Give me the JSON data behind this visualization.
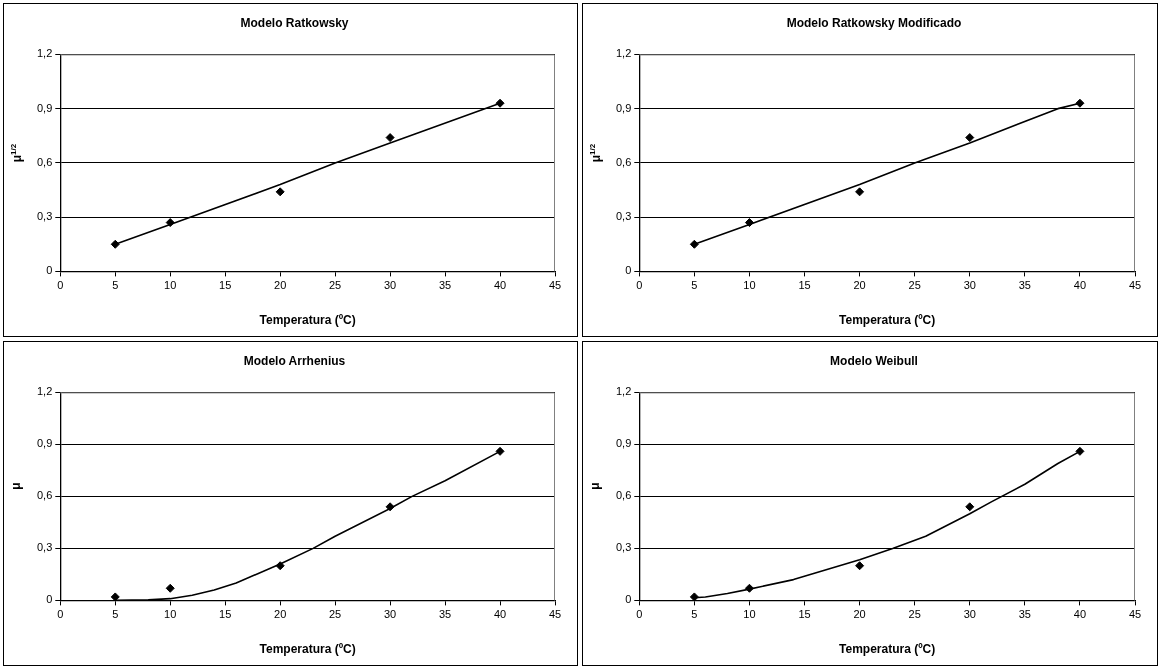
{
  "chart_data": [
    {
      "type": "scatter",
      "title": "Modelo Ratkowsky",
      "xlabel": "Temperatura (ºC)",
      "ylabel": "μ$^{1/2}$",
      "xlim": [
        0,
        45
      ],
      "xticks": [
        0,
        5,
        10,
        15,
        20,
        25,
        30,
        35,
        40,
        45
      ],
      "ylim": [
        0,
        1.2
      ],
      "yticks": [
        {
          "value": 0,
          "label": "0"
        },
        {
          "value": 0.3,
          "label": "0,3"
        },
        {
          "value": 0.6,
          "label": "0,6"
        },
        {
          "value": 0.9,
          "label": "0,9"
        },
        {
          "value": 1.2,
          "label": "1,2"
        }
      ],
      "grid": "y",
      "legend": false,
      "marker": "diamond",
      "series": [
        {
          "color": "#000000",
          "x": [
            5,
            10,
            20,
            30,
            40
          ],
          "values": [
            0.15,
            0.27,
            0.44,
            0.74,
            0.93
          ]
        },
        {
          "type": "line",
          "color": "#000000",
          "marker": "none",
          "line_style": "solid",
          "x": [
            5,
            10,
            20,
            25,
            30,
            40
          ],
          "values": [
            0.15,
            0.26,
            0.48,
            0.6,
            0.71,
            0.93
          ]
        }
      ]
    },
    {
      "type": "scatter",
      "title": "Modelo Ratkowsky Modificado",
      "xlabel": "Temperatura (ºC)",
      "ylabel": "μ$^{1/2}$",
      "xlim": [
        0,
        45
      ],
      "xticks": [
        0,
        5,
        10,
        15,
        20,
        25,
        30,
        35,
        40,
        45
      ],
      "ylim": [
        0,
        1.2
      ],
      "yticks": [
        {
          "value": 0,
          "label": "0"
        },
        {
          "value": 0.3,
          "label": "0,3"
        },
        {
          "value": 0.6,
          "label": "0,6"
        },
        {
          "value": 0.9,
          "label": "0,9"
        },
        {
          "value": 1.2,
          "label": "1,2"
        }
      ],
      "grid": "y",
      "legend": false,
      "marker": "diamond",
      "series": [
        {
          "color": "#000000",
          "x": [
            5,
            10,
            20,
            30,
            40
          ],
          "values": [
            0.15,
            0.27,
            0.44,
            0.74,
            0.93
          ]
        },
        {
          "type": "line",
          "color": "#000000",
          "marker": "none",
          "line_style": "solid",
          "x": [
            5,
            10,
            20,
            25,
            30,
            38,
            40
          ],
          "values": [
            0.15,
            0.26,
            0.48,
            0.6,
            0.71,
            0.9,
            0.93
          ]
        }
      ]
    },
    {
      "type": "scatter",
      "title": "Modelo Arrhenius",
      "xlabel": "Temperatura (ºC)",
      "ylabel": "μ",
      "xlim": [
        0,
        45
      ],
      "xticks": [
        0,
        5,
        10,
        15,
        20,
        25,
        30,
        35,
        40,
        45
      ],
      "ylim": [
        0,
        1.2
      ],
      "yticks": [
        {
          "value": 0,
          "label": "0"
        },
        {
          "value": 0.3,
          "label": "0,3"
        },
        {
          "value": 0.6,
          "label": "0,6"
        },
        {
          "value": 0.9,
          "label": "0,9"
        },
        {
          "value": 1.2,
          "label": "1,2"
        }
      ],
      "grid": "y",
      "legend": false,
      "marker": "diamond",
      "series": [
        {
          "color": "#000000",
          "x": [
            5,
            10,
            20,
            30,
            40
          ],
          "values": [
            0.02,
            0.07,
            0.2,
            0.54,
            0.86
          ]
        },
        {
          "type": "line",
          "color": "#000000",
          "marker": "none",
          "line_style": "solid",
          "x": [
            5,
            8,
            10,
            12,
            14,
            16,
            20,
            23,
            25,
            30,
            32,
            35,
            40
          ],
          "values": [
            0,
            0.003,
            0.01,
            0.03,
            0.06,
            0.1,
            0.21,
            0.3,
            0.37,
            0.53,
            0.6,
            0.69,
            0.86
          ]
        }
      ]
    },
    {
      "type": "scatter",
      "title": "Modelo Weibull",
      "xlabel": "Temperatura (ºC)",
      "ylabel": "μ",
      "xlim": [
        0,
        45
      ],
      "xticks": [
        0,
        5,
        10,
        15,
        20,
        25,
        30,
        35,
        40,
        45
      ],
      "ylim": [
        0,
        1.2
      ],
      "yticks": [
        {
          "value": 0,
          "label": "0"
        },
        {
          "value": 0.3,
          "label": "0,3"
        },
        {
          "value": 0.6,
          "label": "0,6"
        },
        {
          "value": 0.9,
          "label": "0,9"
        },
        {
          "value": 1.2,
          "label": "1,2"
        }
      ],
      "grid": "y",
      "legend": false,
      "marker": "diamond",
      "series": [
        {
          "color": "#000000",
          "x": [
            5,
            10,
            20,
            30,
            40
          ],
          "values": [
            0.02,
            0.07,
            0.2,
            0.54,
            0.86
          ]
        },
        {
          "type": "line",
          "color": "#000000",
          "marker": "none",
          "line_style": "solid",
          "x": [
            5,
            6,
            8,
            10,
            14,
            20,
            23,
            26,
            30,
            32,
            35,
            38,
            40
          ],
          "values": [
            0.015,
            0.02,
            0.04,
            0.065,
            0.12,
            0.235,
            0.3,
            0.37,
            0.5,
            0.57,
            0.67,
            0.79,
            0.86
          ]
        }
      ]
    }
  ]
}
